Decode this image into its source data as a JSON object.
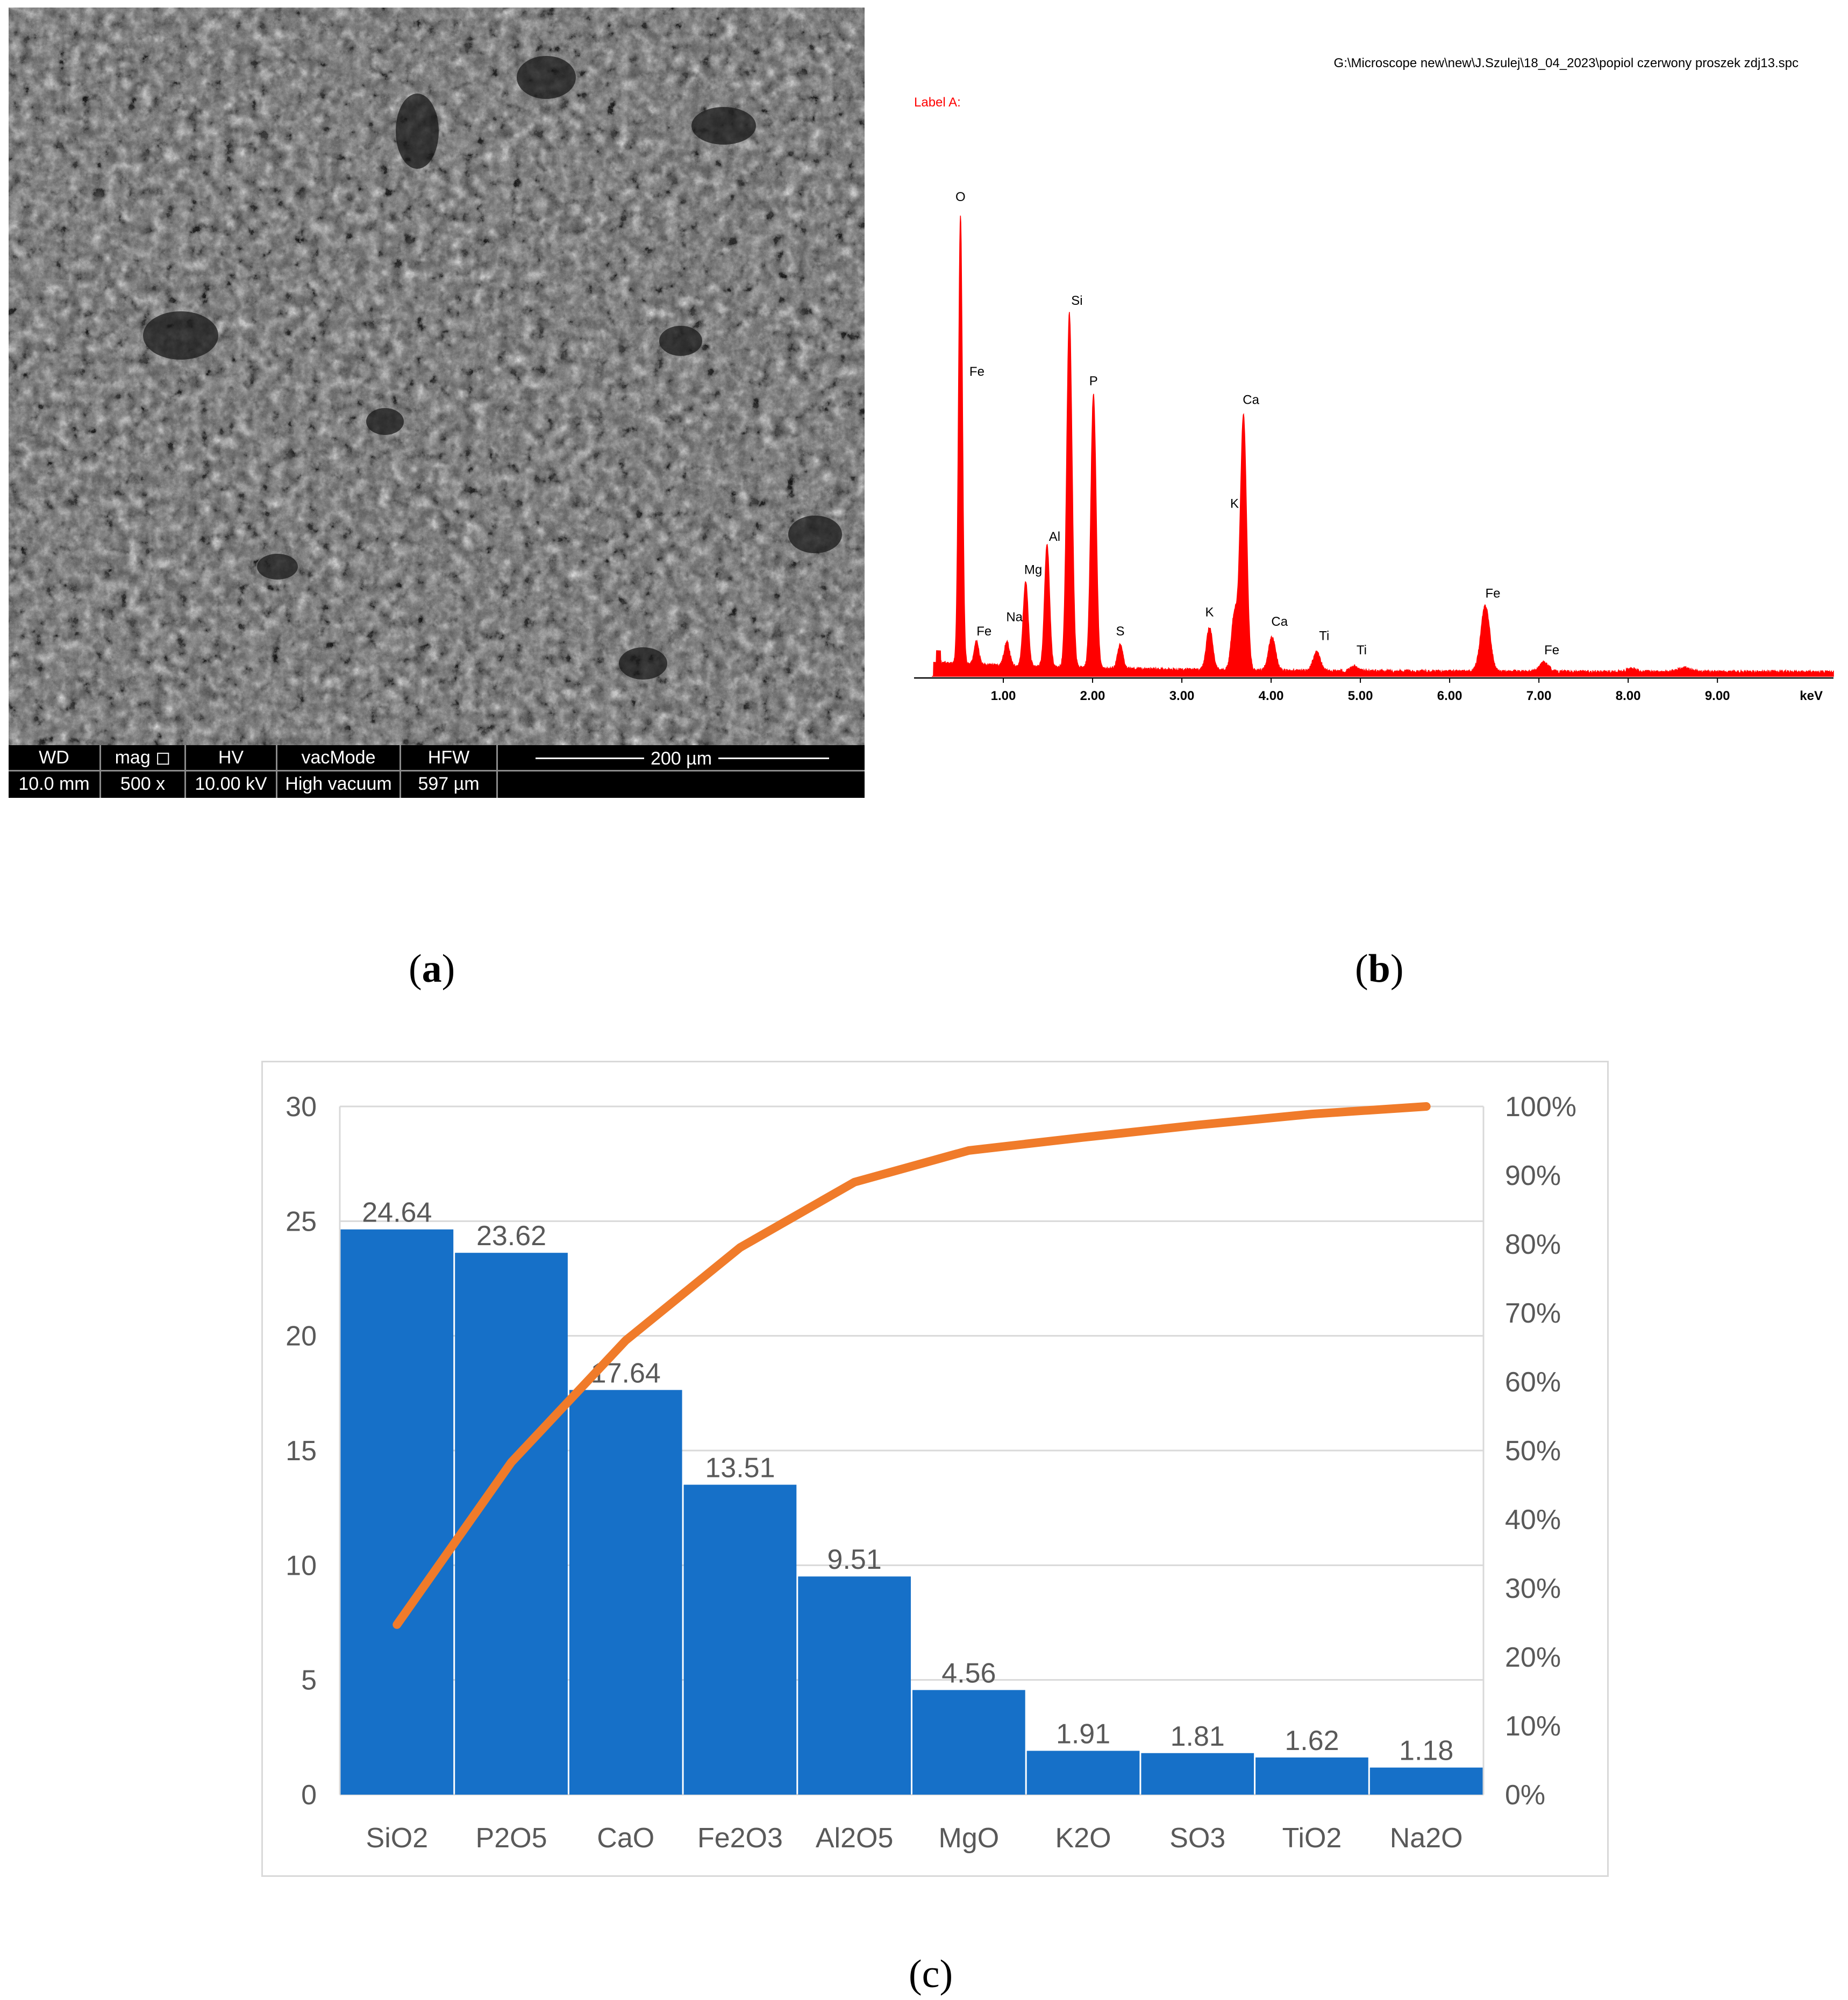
{
  "sem": {
    "databar": [
      {
        "key": "WD",
        "value": "10.0 mm"
      },
      {
        "key": "mag ◻",
        "value": "500 x"
      },
      {
        "key": "HV",
        "value": "10.00 kV"
      },
      {
        "key": "vacMode",
        "value": "High vacuum"
      },
      {
        "key": "HFW",
        "value": "597 µm"
      }
    ],
    "scale_label": "200 µm"
  },
  "eds": {
    "file_path": "G:\\Microscope new\\new\\J.Szulej\\18_04_2023\\popiol czerwony proszek zdj13.spc",
    "label": "Label A:",
    "color": "#ff0000",
    "chart_data": {
      "type": "line",
      "xlabel": "keV",
      "x_ticks": [
        "1.00",
        "2.00",
        "3.00",
        "4.00",
        "5.00",
        "6.00",
        "7.00",
        "8.00",
        "9.00"
      ],
      "xlim": [
        0,
        10.3
      ],
      "ylim": [
        0,
        100
      ],
      "peaks": [
        {
          "x": 0.52,
          "y": 95,
          "w": 0.022,
          "label": "O"
        },
        {
          "x": 0.7,
          "y": 5,
          "w": 0.025,
          "label": "Fe"
        },
        {
          "x": 1.04,
          "y": 5,
          "w": 0.03,
          "label": "Na"
        },
        {
          "x": 1.25,
          "y": 18,
          "w": 0.028,
          "label": "Mg"
        },
        {
          "x": 1.49,
          "y": 26,
          "w": 0.028,
          "label": "Al"
        },
        {
          "x": 1.74,
          "y": 75,
          "w": 0.03,
          "label": "Si"
        },
        {
          "x": 2.01,
          "y": 58,
          "w": 0.03,
          "label": "P"
        },
        {
          "x": 2.31,
          "y": 5,
          "w": 0.03,
          "label": "S"
        },
        {
          "x": 3.31,
          "y": 9,
          "w": 0.035,
          "label": "K"
        },
        {
          "x": 3.59,
          "y": 12,
          "w": 0.035
        },
        {
          "x": 3.69,
          "y": 54,
          "w": 0.035,
          "label": "Ca"
        },
        {
          "x": 4.01,
          "y": 7,
          "w": 0.04,
          "label": "Ca"
        },
        {
          "x": 4.51,
          "y": 4,
          "w": 0.04,
          "label": "Ti"
        },
        {
          "x": 4.93,
          "y": 1,
          "w": 0.04,
          "label": "Ti"
        },
        {
          "x": 6.4,
          "y": 14,
          "w": 0.05,
          "label": "Fe"
        },
        {
          "x": 7.06,
          "y": 2,
          "w": 0.05,
          "label": "Fe"
        },
        {
          "x": 8.04,
          "y": 0.6,
          "w": 0.06
        },
        {
          "x": 8.63,
          "y": 0.8,
          "w": 0.07
        }
      ],
      "peak_labels": [
        {
          "text": "O",
          "x": 0.52,
          "y": 100
        },
        {
          "text": "Fe",
          "x": 0.62,
          "y": 63
        },
        {
          "text": "Fe",
          "x": 0.7,
          "y": 8
        },
        {
          "text": "Na",
          "x": 1.04,
          "y": 11
        },
        {
          "text": "Mg",
          "x": 1.25,
          "y": 21
        },
        {
          "text": "Al",
          "x": 1.49,
          "y": 28
        },
        {
          "text": "Si",
          "x": 1.74,
          "y": 78
        },
        {
          "text": "P",
          "x": 2.01,
          "y": 61
        },
        {
          "text": "S",
          "x": 2.31,
          "y": 8
        },
        {
          "text": "Ca",
          "x": 3.69,
          "y": 57
        },
        {
          "text": "K",
          "x": 3.59,
          "y": 35
        },
        {
          "text": "K",
          "x": 3.31,
          "y": 12
        },
        {
          "text": "Ca",
          "x": 4.01,
          "y": 10
        },
        {
          "text": "Ti",
          "x": 4.51,
          "y": 7
        },
        {
          "text": "Ti",
          "x": 4.93,
          "y": 4
        },
        {
          "text": "Fe",
          "x": 6.4,
          "y": 16
        },
        {
          "text": "Fe",
          "x": 7.06,
          "y": 4
        }
      ]
    }
  },
  "captions": {
    "a": "a",
    "b": "b",
    "c": "c"
  },
  "pareto": {
    "bar_color": "#1670C8",
    "line_color": "#F07B2A",
    "chart_data": {
      "type": "bar",
      "categories": [
        "SiO2",
        "P2O5",
        "CaO",
        "Fe2O3",
        "Al2O5",
        "MgO",
        "K2O",
        "SO3",
        "TiO2",
        "Na2O"
      ],
      "values": [
        24.64,
        23.62,
        17.64,
        13.51,
        9.51,
        4.56,
        1.91,
        1.81,
        1.62,
        1.18
      ],
      "data_labels": [
        "24.64",
        "23.62",
        "17.64",
        "13.51",
        "9.51",
        "4.56",
        "1.91",
        "1.81",
        "1.62",
        "1.18"
      ],
      "cumulative_percent": [
        24.7,
        48.3,
        66.0,
        79.5,
        89.0,
        93.6,
        95.5,
        97.3,
        98.9,
        100.0
      ],
      "ylim": [
        0,
        30
      ],
      "y_ticks": [
        "0",
        "5",
        "10",
        "15",
        "20",
        "25",
        "30"
      ],
      "y2lim": [
        0,
        100
      ],
      "y2_ticks": [
        "0%",
        "10%",
        "20%",
        "30%",
        "40%",
        "50%",
        "60%",
        "70%",
        "80%",
        "90%",
        "100%"
      ],
      "grid": true
    }
  }
}
